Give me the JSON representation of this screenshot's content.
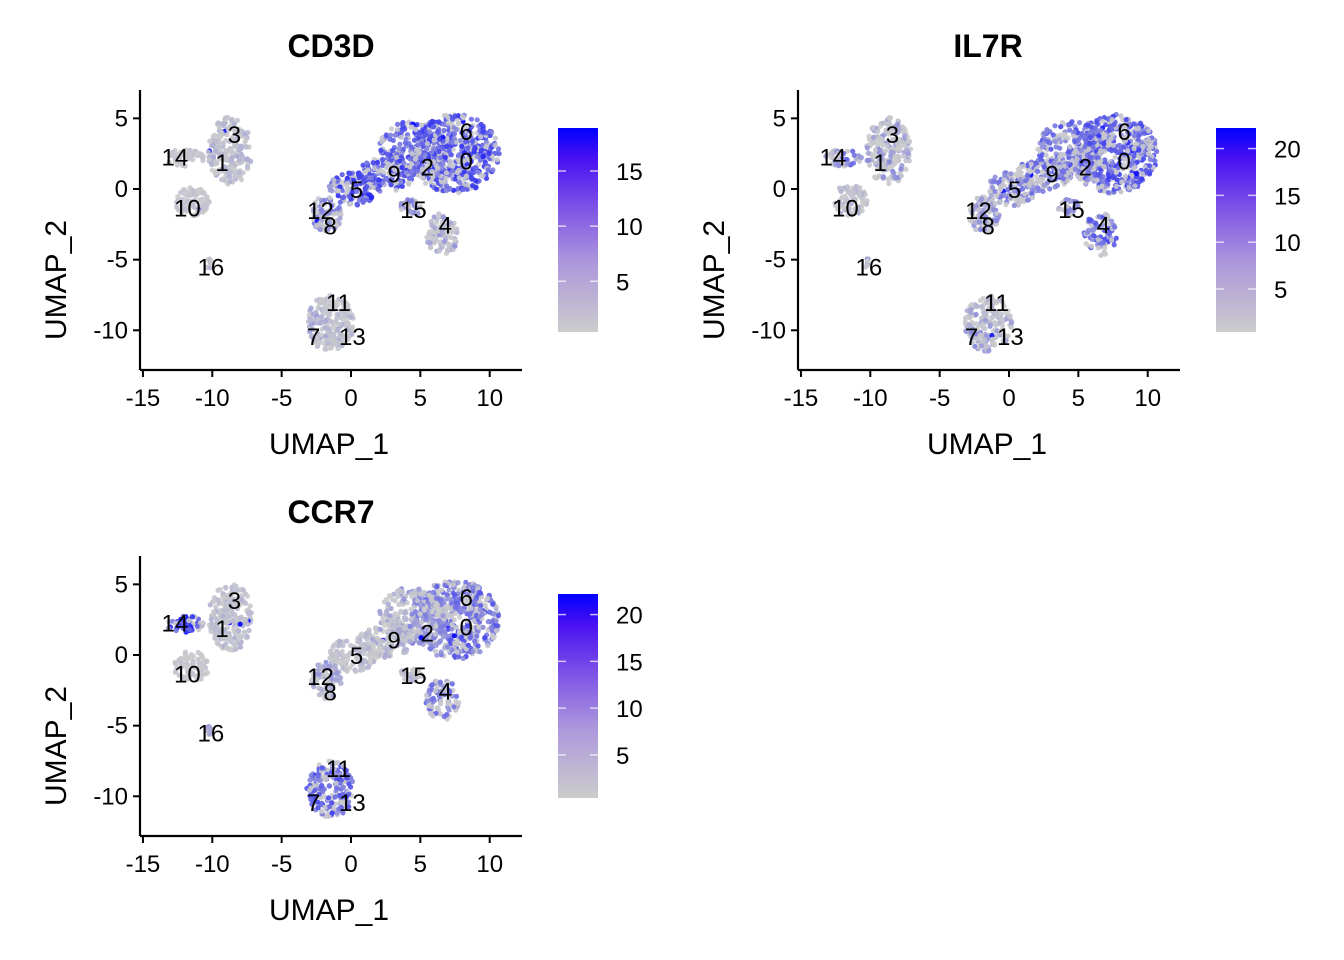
{
  "chart_data": [
    {
      "type": "scatter",
      "title": "CD3D",
      "xlabel": "UMAP_1",
      "ylabel": "UMAP_2",
      "xlim": [
        -15.2,
        12.3
      ],
      "ylim": [
        -12.8,
        7.0
      ],
      "xticks": [
        -15,
        -10,
        -5,
        0,
        5,
        10
      ],
      "yticks": [
        -10,
        -5,
        0,
        5
      ],
      "colorbar": {
        "ticks": [
          5,
          10,
          15
        ],
        "range": [
          0.4,
          18.9
        ],
        "low_color": "#cccccc",
        "high_color": "#0000ff"
      },
      "clusters": [
        {
          "label": "0",
          "x": 8.3,
          "y": 2.0,
          "expr": 0.55
        },
        {
          "label": "1",
          "x": -9.3,
          "y": 1.9,
          "expr": 0.12
        },
        {
          "label": "2",
          "x": 5.5,
          "y": 1.6,
          "expr": 0.5
        },
        {
          "label": "3",
          "x": -8.4,
          "y": 3.9,
          "expr": 0.1
        },
        {
          "label": "4",
          "x": 6.8,
          "y": -2.5,
          "expr": 0.2
        },
        {
          "label": "5",
          "x": 0.4,
          "y": 0.0,
          "expr": 0.55
        },
        {
          "label": "6",
          "x": 8.3,
          "y": 4.1,
          "expr": 0.5
        },
        {
          "label": "7",
          "x": -2.7,
          "y": -10.4,
          "expr": 0.15
        },
        {
          "label": "8",
          "x": -1.5,
          "y": -2.6,
          "expr": 0.2
        },
        {
          "label": "9",
          "x": 3.1,
          "y": 1.1,
          "expr": 0.5
        },
        {
          "label": "10",
          "x": -11.8,
          "y": -1.3,
          "expr": 0.05
        },
        {
          "label": "11",
          "x": -0.9,
          "y": -8.0,
          "expr": 0.08
        },
        {
          "label": "12",
          "x": -2.2,
          "y": -1.5,
          "expr": 0.3
        },
        {
          "label": "13",
          "x": 0.1,
          "y": -10.4,
          "expr": 0.12
        },
        {
          "label": "14",
          "x": -12.7,
          "y": 2.3,
          "expr": 0.05
        },
        {
          "label": "15",
          "x": 4.5,
          "y": -1.4,
          "expr": 0.3
        },
        {
          "label": "16",
          "x": -10.1,
          "y": -5.5,
          "expr": 0.1
        }
      ]
    },
    {
      "type": "scatter",
      "title": "IL7R",
      "xlabel": "UMAP_1",
      "ylabel": "UMAP_2",
      "xlim": [
        -15.2,
        12.3
      ],
      "ylim": [
        -12.8,
        7.0
      ],
      "xticks": [
        -15,
        -10,
        -5,
        0,
        5,
        10
      ],
      "yticks": [
        -10,
        -5,
        0,
        5
      ],
      "colorbar": {
        "ticks": [
          5,
          10,
          15,
          20
        ],
        "range": [
          0.4,
          22.2
        ],
        "low_color": "#cccccc",
        "high_color": "#0000ff"
      },
      "clusters": [
        {
          "label": "0",
          "x": 8.3,
          "y": 2.0,
          "expr": 0.5
        },
        {
          "label": "1",
          "x": -9.3,
          "y": 1.9,
          "expr": 0.25
        },
        {
          "label": "2",
          "x": 5.5,
          "y": 1.6,
          "expr": 0.45
        },
        {
          "label": "3",
          "x": -8.4,
          "y": 3.9,
          "expr": 0.2
        },
        {
          "label": "4",
          "x": 6.8,
          "y": -2.5,
          "expr": 0.45
        },
        {
          "label": "5",
          "x": 0.4,
          "y": 0.0,
          "expr": 0.35
        },
        {
          "label": "6",
          "x": 8.3,
          "y": 4.1,
          "expr": 0.5
        },
        {
          "label": "7",
          "x": -2.7,
          "y": -10.4,
          "expr": 0.25
        },
        {
          "label": "8",
          "x": -1.5,
          "y": -2.6,
          "expr": 0.25
        },
        {
          "label": "9",
          "x": 3.1,
          "y": 1.1,
          "expr": 0.4
        },
        {
          "label": "10",
          "x": -11.8,
          "y": -1.3,
          "expr": 0.1
        },
        {
          "label": "11",
          "x": -0.9,
          "y": -8.0,
          "expr": 0.1
        },
        {
          "label": "12",
          "x": -2.2,
          "y": -1.5,
          "expr": 0.2
        },
        {
          "label": "13",
          "x": 0.1,
          "y": -10.4,
          "expr": 0.15
        },
        {
          "label": "14",
          "x": -12.7,
          "y": 2.3,
          "expr": 0.35
        },
        {
          "label": "15",
          "x": 4.5,
          "y": -1.4,
          "expr": 0.3
        },
        {
          "label": "16",
          "x": -10.1,
          "y": -5.5,
          "expr": 0.3
        }
      ]
    },
    {
      "type": "scatter",
      "title": "CCR7",
      "xlabel": "UMAP_1",
      "ylabel": "UMAP_2",
      "xlim": [
        -15.2,
        12.3
      ],
      "ylim": [
        -12.8,
        7.0
      ],
      "xticks": [
        -15,
        -10,
        -5,
        0,
        5,
        10
      ],
      "yticks": [
        -10,
        -5,
        0,
        5
      ],
      "colorbar": {
        "ticks": [
          5,
          10,
          15,
          20
        ],
        "range": [
          0.4,
          22.2
        ],
        "low_color": "#cccccc",
        "high_color": "#0000ff"
      },
      "clusters": [
        {
          "label": "0",
          "x": 8.3,
          "y": 2.0,
          "expr": 0.45
        },
        {
          "label": "1",
          "x": -9.3,
          "y": 1.9,
          "expr": 0.1
        },
        {
          "label": "2",
          "x": 5.5,
          "y": 1.6,
          "expr": 0.3
        },
        {
          "label": "3",
          "x": -8.4,
          "y": 3.9,
          "expr": 0.08
        },
        {
          "label": "4",
          "x": 6.8,
          "y": -2.5,
          "expr": 0.35
        },
        {
          "label": "5",
          "x": 0.4,
          "y": 0.0,
          "expr": 0.1
        },
        {
          "label": "6",
          "x": 8.3,
          "y": 4.1,
          "expr": 0.4
        },
        {
          "label": "7",
          "x": -2.7,
          "y": -10.4,
          "expr": 0.5
        },
        {
          "label": "8",
          "x": -1.5,
          "y": -2.6,
          "expr": 0.15
        },
        {
          "label": "9",
          "x": 3.1,
          "y": 1.1,
          "expr": 0.15
        },
        {
          "label": "10",
          "x": -11.8,
          "y": -1.3,
          "expr": 0.05
        },
        {
          "label": "11",
          "x": -0.9,
          "y": -8.0,
          "expr": 0.45
        },
        {
          "label": "12",
          "x": -2.2,
          "y": -1.5,
          "expr": 0.2
        },
        {
          "label": "13",
          "x": 0.1,
          "y": -10.4,
          "expr": 0.45
        },
        {
          "label": "14",
          "x": -12.7,
          "y": 2.3,
          "expr": 0.6
        },
        {
          "label": "15",
          "x": 4.5,
          "y": -1.4,
          "expr": 0.15
        },
        {
          "label": "16",
          "x": -10.1,
          "y": -5.5,
          "expr": 0.2
        }
      ]
    }
  ]
}
